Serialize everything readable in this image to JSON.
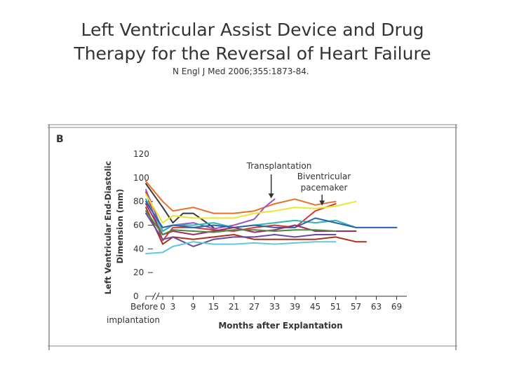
{
  "slide": {
    "title_line1": "Left Ventricular Assist Device and Drug",
    "title_line2": "Therapy for the Reversal of Heart Failure",
    "citation": "N Engl J Med 2006;355:1873-84."
  },
  "chart_data": {
    "type": "line",
    "panel_label": "B",
    "title": "",
    "xlabel": "Months after Explantation",
    "ylabel": "Left Ventricular End-Diastolic Dimension (mm)",
    "ylabel_line1": "Left Ventricular End-Diastolic",
    "ylabel_line2": "Dimension (mm)",
    "x_tick_before_line1": "Before",
    "x_tick_before_line2": "implantation",
    "x_ticks": [
      "0",
      "3",
      "9",
      "15",
      "21",
      "27",
      "33",
      "39",
      "45",
      "51",
      "57",
      "63",
      "69"
    ],
    "y_ticks": [
      0,
      20,
      40,
      60,
      80,
      100,
      120
    ],
    "ylim": [
      0,
      120
    ],
    "xlim": [
      -4,
      72
    ],
    "grid": false,
    "annotations": [
      {
        "text_line1": "Transplantation",
        "text_line2": "",
        "x": 32,
        "y": 82
      },
      {
        "text_line1": "Biventricular",
        "text_line2": "pacemaker",
        "x": 47,
        "y": 76
      }
    ],
    "series": [
      {
        "color": "#e8702a",
        "points": [
          [
            -3,
            97
          ],
          [
            0,
            80
          ],
          [
            3,
            72
          ],
          [
            9,
            75
          ],
          [
            15,
            70
          ],
          [
            21,
            70
          ],
          [
            27,
            72
          ],
          [
            33,
            78
          ],
          [
            39,
            82
          ],
          [
            45,
            77
          ],
          [
            51,
            80
          ]
        ]
      },
      {
        "color": "#3a3a3a",
        "points": [
          [
            -3,
            95
          ],
          [
            0,
            75
          ],
          [
            3,
            62
          ],
          [
            6,
            70
          ],
          [
            9,
            70
          ],
          [
            15,
            58
          ]
        ]
      },
      {
        "color": "#9a59c1",
        "points": [
          [
            -3,
            90
          ],
          [
            0,
            55
          ],
          [
            3,
            60
          ],
          [
            9,
            62
          ],
          [
            15,
            57
          ],
          [
            21,
            60
          ],
          [
            27,
            65
          ],
          [
            30,
            75
          ],
          [
            33,
            82
          ]
        ]
      },
      {
        "color": "#d83a3a",
        "points": [
          [
            -3,
            88
          ],
          [
            0,
            47
          ],
          [
            3,
            58
          ],
          [
            9,
            58
          ],
          [
            15,
            56
          ],
          [
            21,
            55
          ],
          [
            27,
            58
          ],
          [
            33,
            60
          ],
          [
            39,
            58
          ],
          [
            45,
            72
          ],
          [
            51,
            78
          ]
        ]
      },
      {
        "color": "#e8e830",
        "points": [
          [
            -3,
            86
          ],
          [
            0,
            62
          ],
          [
            3,
            68
          ],
          [
            9,
            66
          ],
          [
            15,
            66
          ],
          [
            21,
            66
          ],
          [
            27,
            70
          ],
          [
            33,
            72
          ],
          [
            39,
            75
          ],
          [
            45,
            74
          ],
          [
            51,
            76
          ],
          [
            57,
            80
          ]
        ]
      },
      {
        "color": "#2eb6b0",
        "points": [
          [
            -3,
            82
          ],
          [
            0,
            55
          ],
          [
            3,
            60
          ],
          [
            9,
            60
          ],
          [
            15,
            62
          ],
          [
            21,
            58
          ],
          [
            27,
            60
          ],
          [
            33,
            62
          ],
          [
            39,
            64
          ],
          [
            45,
            62
          ],
          [
            51,
            64
          ],
          [
            57,
            58
          ]
        ]
      },
      {
        "color": "#2a63a8",
        "points": [
          [
            -3,
            80
          ],
          [
            0,
            58
          ],
          [
            3,
            60
          ],
          [
            9,
            58
          ],
          [
            15,
            60
          ],
          [
            21,
            58
          ],
          [
            27,
            60
          ],
          [
            33,
            58
          ],
          [
            39,
            58
          ],
          [
            45,
            66
          ],
          [
            51,
            62
          ],
          [
            57,
            58
          ],
          [
            63,
            58
          ],
          [
            69,
            58
          ]
        ]
      },
      {
        "color": "#a02a6a",
        "points": [
          [
            -3,
            78
          ],
          [
            0,
            52
          ],
          [
            3,
            55
          ],
          [
            9,
            52
          ],
          [
            15,
            55
          ],
          [
            21,
            58
          ],
          [
            27,
            54
          ],
          [
            33,
            56
          ],
          [
            39,
            60
          ],
          [
            45,
            55
          ],
          [
            51,
            55
          ],
          [
            57,
            55
          ]
        ]
      },
      {
        "color": "#a8321c",
        "points": [
          [
            -3,
            75
          ],
          [
            0,
            44
          ],
          [
            3,
            50
          ],
          [
            9,
            48
          ],
          [
            15,
            50
          ],
          [
            21,
            52
          ],
          [
            27,
            48
          ],
          [
            33,
            48
          ],
          [
            39,
            48
          ],
          [
            45,
            48
          ],
          [
            51,
            50
          ],
          [
            57,
            46
          ],
          [
            60,
            46
          ]
        ]
      },
      {
        "color": "#4a8a3a",
        "points": [
          [
            -3,
            72
          ],
          [
            0,
            52
          ],
          [
            3,
            56
          ],
          [
            9,
            55
          ],
          [
            15,
            54
          ],
          [
            21,
            56
          ],
          [
            27,
            56
          ],
          [
            33,
            55
          ],
          [
            39,
            56
          ],
          [
            45,
            56
          ],
          [
            51,
            55
          ]
        ]
      },
      {
        "color": "#6a4aa0",
        "points": [
          [
            -3,
            70
          ],
          [
            0,
            48
          ],
          [
            3,
            50
          ],
          [
            9,
            42
          ],
          [
            15,
            48
          ],
          [
            21,
            50
          ],
          [
            27,
            50
          ],
          [
            33,
            52
          ],
          [
            39,
            50
          ],
          [
            45,
            52
          ],
          [
            51,
            52
          ]
        ]
      },
      {
        "color": "#60c8d8",
        "points": [
          [
            -3,
            36
          ],
          [
            0,
            37
          ],
          [
            3,
            42
          ],
          [
            9,
            46
          ],
          [
            15,
            44
          ],
          [
            21,
            44
          ],
          [
            27,
            45
          ],
          [
            33,
            44
          ],
          [
            39,
            45
          ],
          [
            45,
            46
          ],
          [
            51,
            46
          ]
        ]
      }
    ]
  }
}
